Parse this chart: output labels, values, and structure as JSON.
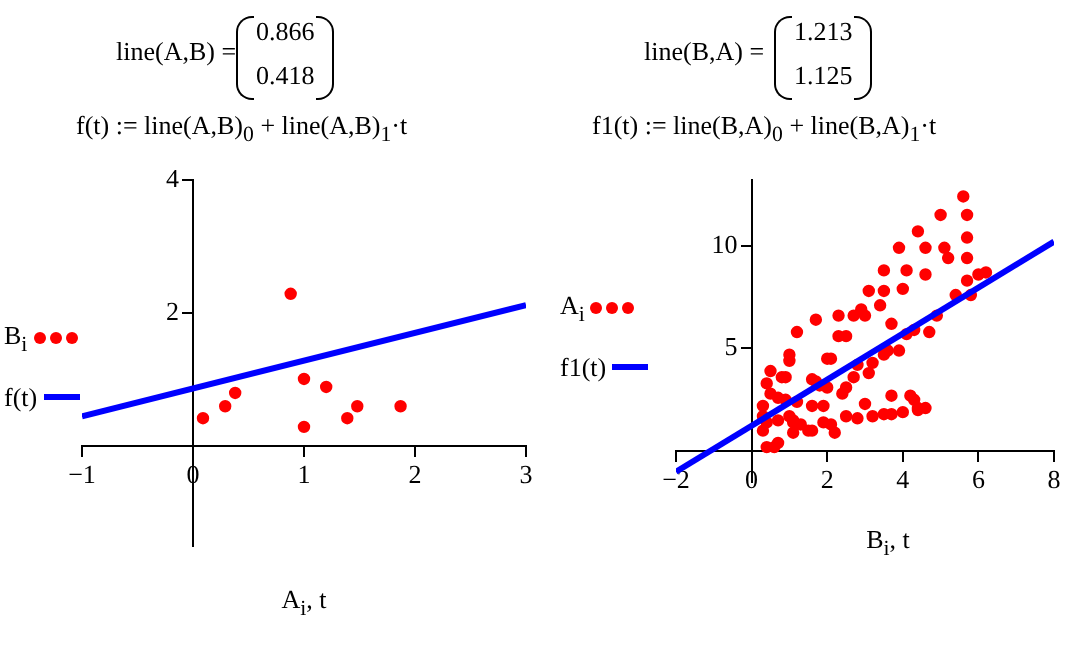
{
  "chart_data": [
    {
      "type": "scatter",
      "annotations": [
        "line(A,B) =",
        "0.866",
        "0.418",
        "f(t) := line(A,B)$_{0}$ + line(A,B)$_{1}$·t"
      ],
      "xlabel": "A$_{i}$, t",
      "xlim": [
        -1,
        3
      ],
      "ylim": [
        -1.5,
        4
      ],
      "xticks": [
        -1,
        0,
        1,
        2,
        3
      ],
      "yticks": [
        2,
        4
      ],
      "legend": "left",
      "series": [
        {
          "name": "B$_{i}$",
          "color": "#ff0000",
          "marker": "circle",
          "x": [
            0.09,
            0.29,
            0.38,
            0.88,
            1.0,
            1.0,
            1.2,
            1.39,
            1.48,
            1.87
          ],
          "values": [
            0.42,
            0.6,
            0.8,
            2.29,
            1.01,
            0.29,
            0.89,
            0.42,
            0.6,
            0.6
          ]
        },
        {
          "name": "f(t)",
          "type": "line",
          "color": "#0000ff",
          "x": [
            -1,
            3
          ],
          "values": [
            0.45,
            2.12
          ]
        }
      ]
    },
    {
      "type": "scatter",
      "annotations": [
        "line(B,A) =",
        "1.213",
        "1.125",
        "f1(t) := line(B,A)$_{0}$ + line(B,A)$_{1}$·t"
      ],
      "xlabel": "B$_{i}$, t",
      "xlim": [
        -2,
        8
      ],
      "ylim": [
        -1.5,
        13.2
      ],
      "xticks": [
        -2,
        0,
        2,
        4,
        6,
        8
      ],
      "yticks": [
        5,
        10
      ],
      "legend": "left",
      "series": [
        {
          "name": "A$_{i}$",
          "color": "#ff0000",
          "marker": "circle",
          "x": [
            5.6,
            5.7,
            5.0,
            5.7,
            4.4,
            5.1,
            4.6,
            3.9,
            5.2,
            5.7,
            4.1,
            3.5,
            4.6,
            6.0,
            6.2,
            5.7,
            4.0,
            3.5,
            3.1,
            5.4,
            5.8,
            3.4,
            2.9,
            2.3,
            3.0,
            2.7,
            1.7,
            4.9,
            3.7,
            4.3,
            1.2,
            4.7,
            2.3,
            2.5,
            1.0,
            1.0,
            0.5,
            2.0,
            2.1,
            0.4,
            0.8,
            0.9,
            1.6,
            1.7,
            1.8,
            2.0,
            2.5,
            2.8,
            3.1,
            3.2,
            3.5,
            3.6,
            3.9,
            4.1,
            0.5,
            0.7,
            0.9,
            1.2,
            1.6,
            1.9,
            2.7,
            3.7,
            4.2,
            4.3,
            4.4,
            4.6,
            0.3,
            0.3,
            0.4,
            0.7,
            1.0,
            1.1,
            1.3,
            1.6,
            1.9,
            2.1,
            2.2,
            2.5,
            2.8,
            3.2,
            3.5,
            3.7,
            4.0,
            4.4,
            0.3,
            1.1,
            1.5,
            0.4,
            0.6,
            0.7,
            1.1,
            3.0,
            2.4
          ],
          "values": [
            12.4,
            11.5,
            11.5,
            10.4,
            10.7,
            9.9,
            9.9,
            9.9,
            9.4,
            9.4,
            8.8,
            8.8,
            8.6,
            8.6,
            8.7,
            8.3,
            7.9,
            7.8,
            7.8,
            7.6,
            7.6,
            7.1,
            6.9,
            6.6,
            6.6,
            6.6,
            6.4,
            6.6,
            6.2,
            5.9,
            5.8,
            5.8,
            5.6,
            5.6,
            4.7,
            4.4,
            3.9,
            4.5,
            4.5,
            3.3,
            3.6,
            3.6,
            3.5,
            3.4,
            3.2,
            3.1,
            3.1,
            4.2,
            3.8,
            4.3,
            4.7,
            4.9,
            4.9,
            5.7,
            2.8,
            2.6,
            2.5,
            2.4,
            2.2,
            2.2,
            3.6,
            2.7,
            2.7,
            2.5,
            2.1,
            2.1,
            2.2,
            1.7,
            1.4,
            1.5,
            1.7,
            1.5,
            1.3,
            1.0,
            1.4,
            1.3,
            0.9,
            1.7,
            1.6,
            1.7,
            1.8,
            1.8,
            1.9,
            2.0,
            1.0,
            0.9,
            1.0,
            0.2,
            0.2,
            0.4,
            1.4,
            2.3,
            2.8
          ]
        },
        {
          "name": "f1(t)",
          "type": "line",
          "color": "#0000ff",
          "x": [
            -2,
            8
          ],
          "values": [
            -1,
            10.2
          ]
        }
      ]
    }
  ]
}
